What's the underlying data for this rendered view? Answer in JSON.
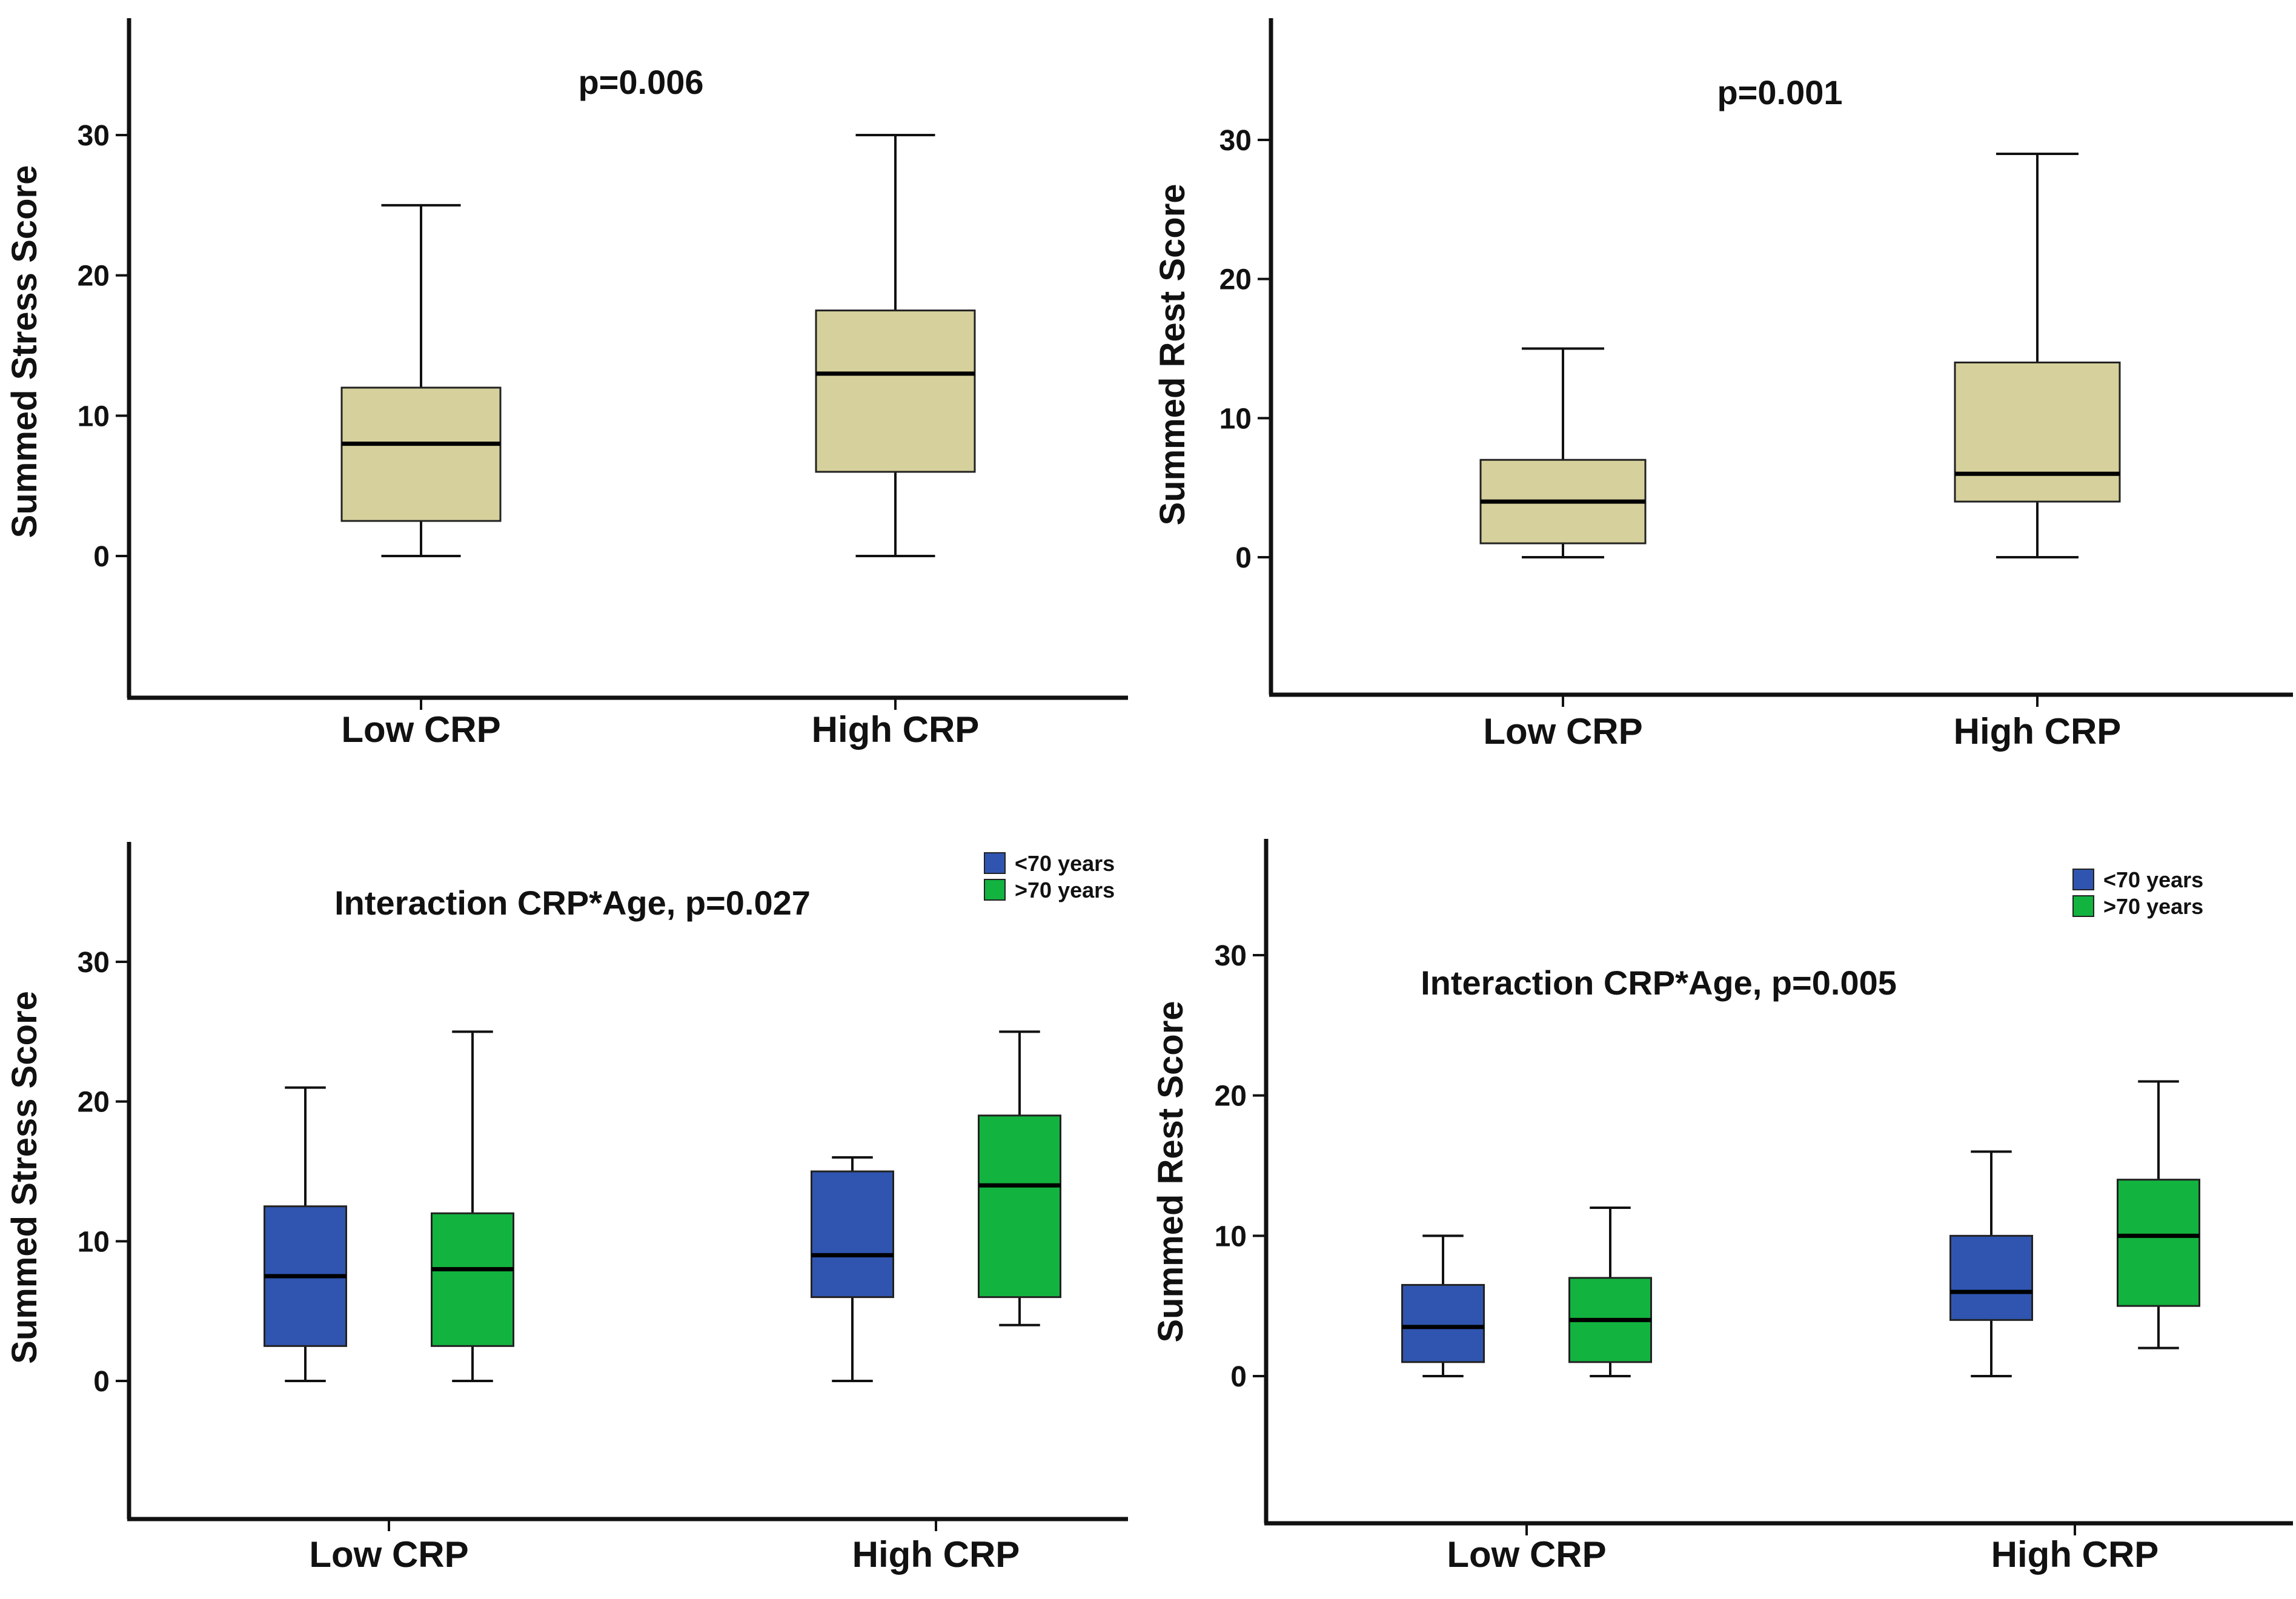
{
  "chart_data": [
    {
      "type": "boxplot",
      "annotation": "p=0.006",
      "ylabel": "Summed Stress Score",
      "xlabel": "",
      "ylim": [
        -10,
        38
      ],
      "yticks": [
        0,
        10,
        20,
        30
      ],
      "categories": [
        "Low CRP",
        "High CRP"
      ],
      "series": [
        {
          "name": "",
          "color": "#d6d19c",
          "boxes": [
            {
              "min": 0,
              "q1": 2.5,
              "median": 8,
              "q3": 12,
              "max": 25
            },
            {
              "min": 0,
              "q1": 6,
              "median": 13,
              "q3": 17.5,
              "max": 30
            }
          ]
        }
      ],
      "legend": []
    },
    {
      "type": "boxplot",
      "annotation": "p=0.001",
      "ylabel": "Summed Rest Score",
      "xlabel": "",
      "ylim": [
        -10,
        38
      ],
      "yticks": [
        0,
        10,
        20,
        30
      ],
      "categories": [
        "Low CRP",
        "High CRP"
      ],
      "series": [
        {
          "name": "",
          "color": "#d6d19c",
          "boxes": [
            {
              "min": 0,
              "q1": 1,
              "median": 4,
              "q3": 7,
              "max": 15
            },
            {
              "min": 0,
              "q1": 4,
              "median": 6,
              "q3": 14,
              "max": 29
            }
          ]
        }
      ],
      "legend": []
    },
    {
      "type": "boxplot",
      "annotation": "Interaction CRP*Age, p=0.027",
      "ylabel": "Summed Stress Score",
      "xlabel": "",
      "ylim": [
        -10,
        38
      ],
      "yticks": [
        0,
        10,
        20,
        30
      ],
      "categories": [
        "Low CRP",
        "High CRP"
      ],
      "series": [
        {
          "name": "<70 years",
          "color": "#3055b0",
          "boxes": [
            {
              "min": 0,
              "q1": 2.5,
              "median": 7.5,
              "q3": 12.5,
              "max": 21
            },
            {
              "min": 0,
              "q1": 6,
              "median": 9,
              "q3": 15,
              "max": 16
            }
          ]
        },
        {
          "name": ">70 years",
          "color": "#12b33f",
          "boxes": [
            {
              "min": 0,
              "q1": 2.5,
              "median": 8,
              "q3": 12,
              "max": 25
            },
            {
              "min": 4,
              "q1": 6,
              "median": 14,
              "q3": 19,
              "max": 25
            }
          ]
        }
      ],
      "legend": [
        "<70 years",
        ">70 years"
      ]
    },
    {
      "type": "boxplot",
      "annotation": "Interaction CRP*Age, p=0.005",
      "ylabel": "Summed Rest Score",
      "xlabel": "",
      "ylim": [
        -10,
        38
      ],
      "yticks": [
        0,
        10,
        20,
        30
      ],
      "categories": [
        "Low CRP",
        "High CRP"
      ],
      "series": [
        {
          "name": "<70 years",
          "color": "#3055b0",
          "boxes": [
            {
              "min": 0,
              "q1": 1,
              "median": 3.5,
              "q3": 6.5,
              "max": 10
            },
            {
              "min": 0,
              "q1": 4,
              "median": 6,
              "q3": 10,
              "max": 16
            }
          ]
        },
        {
          "name": ">70 years",
          "color": "#12b33f",
          "boxes": [
            {
              "min": 0,
              "q1": 1,
              "median": 4,
              "q3": 7,
              "max": 12
            },
            {
              "min": 2,
              "q1": 5,
              "median": 10,
              "q3": 14,
              "max": 21
            }
          ]
        }
      ],
      "legend": [
        "<70 years",
        ">70 years"
      ]
    }
  ]
}
